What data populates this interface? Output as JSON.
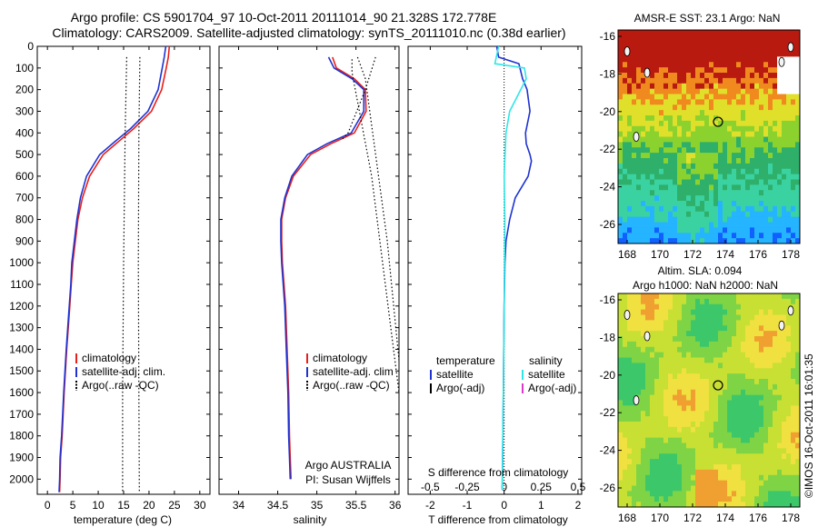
{
  "header": {
    "line1": "Argo profile: CS 5901704_97 10-Oct-2011 20111014_90 21.328S 172.778E",
    "line2": "Climatology: CARS2009. Satellite-adjusted climatology: synTS_20111010.nc (0.38d earlier)"
  },
  "depth_ticks": [
    0,
    100,
    200,
    300,
    400,
    500,
    600,
    700,
    800,
    900,
    1000,
    1100,
    1200,
    1300,
    1400,
    1500,
    1600,
    1700,
    1800,
    1900,
    2000
  ],
  "colors": {
    "clim": "#e8201b",
    "sat": "#1f33d1",
    "sal_sat": "#2fe6e6",
    "argo": "#000000",
    "sal_argo": "#d83cc8"
  },
  "chart_data": [
    {
      "type": "line",
      "panel": "temperature",
      "xlabel": "temperature (deg C)",
      "xlim": [
        -2,
        32
      ],
      "ylim": [
        2070,
        0
      ],
      "x_ticks": [
        0,
        5,
        10,
        15,
        20,
        25,
        30
      ],
      "legend": [
        "climatology",
        "satellite-adj. clim.",
        "Argo(..raw -QC)"
      ],
      "series": [
        {
          "name": "climatology",
          "x": [
            24.0,
            23.8,
            23.4,
            22.5,
            20.5,
            17.0,
            14.0,
            11.0,
            8.3,
            6.9,
            6.0,
            5.5,
            5.0,
            4.7,
            4.4,
            3.8,
            3.3,
            2.9,
            2.6,
            2.5,
            2.4
          ],
          "y": [
            0,
            50,
            100,
            200,
            300,
            380,
            440,
            500,
            600,
            700,
            800,
            900,
            1000,
            1100,
            1200,
            1400,
            1600,
            1800,
            1900,
            2000,
            2060
          ]
        },
        {
          "name": "satellite-adj. clim.",
          "x": [
            23.3,
            23.0,
            22.6,
            21.8,
            19.8,
            16.4,
            13.3,
            10.3,
            7.7,
            6.5,
            5.8,
            5.3,
            4.8,
            4.6,
            4.3,
            3.7,
            3.2,
            2.8,
            2.5,
            2.4,
            2.3
          ],
          "y": [
            0,
            50,
            100,
            200,
            300,
            380,
            440,
            500,
            600,
            700,
            800,
            900,
            1000,
            1100,
            1200,
            1400,
            1600,
            1800,
            1900,
            2000,
            2060
          ]
        },
        {
          "name": "Argo(..raw -QC)",
          "x": [
            15.6,
            15.3,
            15.0,
            14.8,
            14.8
          ],
          "y": [
            50,
            400,
            1000,
            1600,
            2060
          ]
        },
        {
          "name": "Argo(..raw -QC)",
          "x": [
            18.2,
            18.0,
            17.9,
            18.0,
            18.1
          ],
          "y": [
            50,
            400,
            1000,
            1600,
            2060
          ]
        }
      ]
    },
    {
      "type": "line",
      "panel": "salinity",
      "xlabel": "salinity",
      "xlim": [
        33.75,
        36.05
      ],
      "ylim": [
        2070,
        0
      ],
      "x_ticks": [
        34,
        34.5,
        35,
        35.5,
        36
      ],
      "legend": [
        "climatology",
        "satellite-adj. clim",
        "Argo(..raw -QC)"
      ],
      "annotation": [
        "Argo AUSTRALIA",
        "PI: Susan Wijffels"
      ],
      "series": [
        {
          "name": "climatology",
          "x": [
            35.2,
            35.25,
            35.48,
            35.62,
            35.63,
            35.48,
            35.18,
            34.92,
            34.7,
            34.6,
            34.55,
            34.55,
            34.56,
            34.58,
            34.6,
            34.62,
            34.64,
            34.65,
            34.66,
            34.67
          ],
          "y": [
            50,
            100,
            150,
            200,
            300,
            400,
            450,
            500,
            600,
            700,
            800,
            900,
            1000,
            1100,
            1200,
            1400,
            1600,
            1800,
            1900,
            2000
          ]
        },
        {
          "name": "satellite-adj. clim.",
          "x": [
            35.15,
            35.22,
            35.45,
            35.6,
            35.6,
            35.44,
            35.13,
            34.88,
            34.68,
            34.59,
            34.54,
            34.54,
            34.55,
            34.57,
            34.59,
            34.61,
            34.63,
            34.64,
            34.65,
            34.66
          ],
          "y": [
            50,
            100,
            150,
            200,
            300,
            400,
            450,
            500,
            600,
            700,
            800,
            900,
            1000,
            1100,
            1200,
            1400,
            1600,
            1800,
            1900,
            2000
          ]
        },
        {
          "name": "Argo(..raw -QC)",
          "x": [
            35.52,
            35.62,
            35.9,
            36.05
          ],
          "y": [
            50,
            150,
            900,
            1450
          ]
        },
        {
          "name": "Argo(..raw -QC)",
          "x": [
            35.75,
            35.62,
            35.4,
            35.32
          ],
          "y": [
            50,
            200,
            400,
            430
          ]
        },
        {
          "name": "Argo(..raw -QC)",
          "x": [
            35.45,
            35.45,
            35.7,
            36.05
          ],
          "y": [
            60,
            120,
            600,
            1600
          ]
        }
      ]
    },
    {
      "type": "line",
      "panel": "difference",
      "xlabel_bottom": "T difference from climatology",
      "xlabel_top": "S difference from climatology",
      "xlim": [
        -2.6,
        2.1
      ],
      "ylim": [
        2070,
        0
      ],
      "x_ticks": [
        -2,
        -1,
        0,
        1,
        2
      ],
      "top_ticks": [
        "-0.5",
        "-0.25",
        "0",
        "0.25",
        "0.5"
      ],
      "legend_temperature_title": "temperature",
      "legend_salinity_title": "salinity",
      "legend": [
        "satellite",
        "Argo(-adj)",
        "satellite",
        "Argo(-adj)"
      ],
      "series": [
        {
          "name": "T satellite",
          "x": [
            -0.2,
            -0.15,
            0.4,
            0.5,
            0.62,
            0.7,
            0.58,
            0.6,
            0.7,
            0.74,
            0.65,
            0.3,
            0.15,
            0.05,
            0.02,
            0.0,
            -0.02,
            -0.05
          ],
          "y": [
            0,
            50,
            80,
            150,
            200,
            300,
            400,
            450,
            500,
            530,
            600,
            700,
            800,
            900,
            1000,
            1200,
            1600,
            2050
          ]
        },
        {
          "name": "S satellite",
          "x": [
            -0.15,
            -0.25,
            0.55,
            0.6,
            0.3,
            0.15,
            0.05,
            0.0,
            0.02,
            0.0,
            -0.02,
            -0.05
          ],
          "y": [
            0,
            80,
            100,
            150,
            250,
            300,
            400,
            600,
            800,
            1200,
            1600,
            2050
          ]
        }
      ]
    }
  ],
  "maps": {
    "top": {
      "title": "AMSR-E SST: 23.1  Argo: NaN",
      "x_ticks": [
        "168",
        "170",
        "172",
        "174",
        "176",
        "178"
      ],
      "y_ticks": [
        "-16",
        "-18",
        "-20",
        "-22",
        "-24",
        "-26"
      ]
    },
    "bottom": {
      "title1": "Altim. SLA: 0.094",
      "title2": "Argo h1000: NaN h2000: NaN",
      "x_ticks": [
        "168",
        "170",
        "172",
        "174",
        "176",
        "178"
      ],
      "y_ticks": [
        "-16",
        "-18",
        "-20",
        "-22",
        "-24",
        "-26"
      ]
    },
    "credit": "©IMOS 16-Oct-2011 16:01:35"
  }
}
